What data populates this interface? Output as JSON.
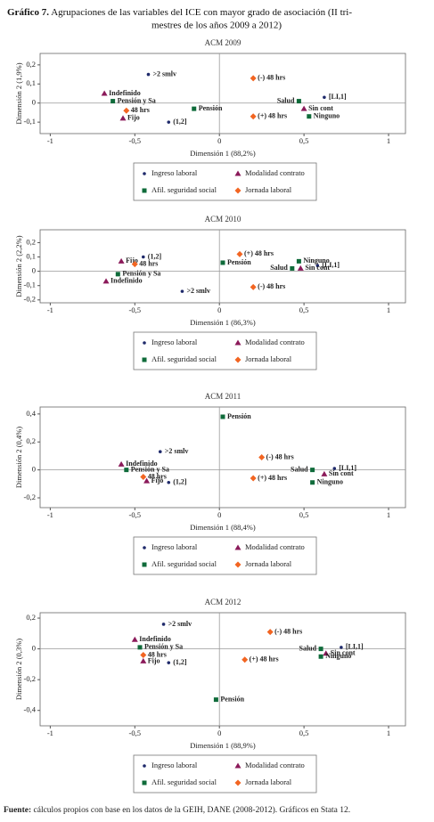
{
  "title_label": "Gráfico 7.",
  "title": "Agrupaciones de las variables del ICE con mayor grado de asociación (II tri-",
  "title_line2": "mestres de los años 2009 a 2012)",
  "source_label": "Fuente:",
  "source": "cálculos propios con base en los datos de la GEIH, DANE (2008-2012). Gráficos en Stata 12.",
  "chart_data": [
    {
      "type": "scatter",
      "title": "ACM 2009",
      "xlabel": "Dimensión 1 (88,2%)",
      "ylabel": "Dimensión 2 (1,9%)",
      "xlim": [
        -1.06,
        1.1
      ],
      "ylim": [
        -0.16,
        0.26
      ],
      "xticks": [
        -1,
        {
          "value": -0.5,
          "label": "-0,5"
        },
        0,
        {
          "value": 0.5,
          "label": "0,5"
        },
        1
      ],
      "yticks": [
        {
          "value": 0.2,
          "label": "0,2"
        },
        {
          "value": 0.1,
          "label": "0,1"
        },
        0,
        {
          "value": -0.1,
          "label": "-0,1"
        }
      ],
      "series": [
        {
          "name": "Ingreso laboral",
          "color": "#1f2a6b",
          "marker": "circle",
          "x": [
            -0.42,
            -0.3,
            0.62
          ],
          "y": [
            0.15,
            -0.1,
            0.03
          ],
          "labels": [
            ">2 smlv",
            "(1,2]",
            "[LI,1]"
          ]
        },
        {
          "name": "Modalidad contrato",
          "color": "#8b1a5a",
          "marker": "triangle",
          "x": [
            -0.68,
            -0.57,
            0.5
          ],
          "y": [
            0.05,
            -0.08,
            -0.03
          ],
          "labels": [
            "Indefinido",
            "Fijo",
            "Sin cont"
          ]
        },
        {
          "name": "Afil. seguridad social",
          "color": "#0f6b3a",
          "marker": "square",
          "x": [
            -0.63,
            -0.15,
            0.47,
            0.53
          ],
          "y": [
            0.01,
            -0.03,
            0.01,
            -0.07
          ],
          "labels": [
            "Pensión y Sa",
            "Pensión",
            "Salud",
            "Ninguno"
          ]
        },
        {
          "name": "Jornada laboral",
          "color": "#f26522",
          "marker": "diamond",
          "x": [
            -0.55,
            0.2,
            0.2
          ],
          "y": [
            -0.04,
            0.13,
            -0.07
          ],
          "labels": [
            "48 hrs",
            "(-) 48 hrs",
            "(+) 48 hrs"
          ]
        }
      ]
    },
    {
      "type": "scatter",
      "title": "ACM 2010",
      "xlabel": "Dimensión 1 (86,3%)",
      "ylabel": "Dimensión 2 (2,2%)",
      "xlim": [
        -1.06,
        1.1
      ],
      "ylim": [
        -0.22,
        0.29
      ],
      "xticks": [
        -1,
        {
          "value": -0.5,
          "label": "-0,5"
        },
        0,
        {
          "value": 0.5,
          "label": "0,5"
        },
        1
      ],
      "yticks": [
        {
          "value": 0.2,
          "label": "0,2"
        },
        {
          "value": 0.1,
          "label": "0,1"
        },
        0,
        {
          "value": -0.1,
          "label": "-0,1"
        },
        {
          "value": -0.2,
          "label": "-0,2"
        }
      ],
      "series": [
        {
          "name": "Ingreso laboral",
          "color": "#1f2a6b",
          "marker": "circle",
          "x": [
            -0.45,
            -0.22,
            0.58
          ],
          "y": [
            0.1,
            -0.14,
            0.04
          ],
          "labels": [
            "(1,2]",
            ">2 smlv",
            "[LI,1]"
          ]
        },
        {
          "name": "Modalidad contrato",
          "color": "#8b1a5a",
          "marker": "triangle",
          "x": [
            -0.58,
            -0.67,
            0.48
          ],
          "y": [
            0.07,
            -0.07,
            0.02
          ],
          "labels": [
            "Fijo",
            "Indefinido",
            "Sin cont"
          ]
        },
        {
          "name": "Afil. seguridad social",
          "color": "#0f6b3a",
          "marker": "square",
          "x": [
            -0.6,
            0.02,
            0.43,
            0.47
          ],
          "y": [
            -0.02,
            0.06,
            0.02,
            0.07
          ],
          "labels": [
            "Pensión y Sa",
            "Pensión",
            "Salud",
            "Ninguno"
          ]
        },
        {
          "name": "Jornada laboral",
          "color": "#f26522",
          "marker": "diamond",
          "x": [
            -0.5,
            0.12,
            0.2
          ],
          "y": [
            0.05,
            0.12,
            -0.11
          ],
          "labels": [
            "48 hrs",
            "(+) 48 hrs",
            "(-) 48 hrs"
          ]
        }
      ]
    },
    {
      "type": "scatter",
      "title": "ACM 2011",
      "xlabel": "Dimensión 1 (88,4%)",
      "ylabel": "Dimensión 2 (0,4%)",
      "xlim": [
        -1.06,
        1.1
      ],
      "ylim": [
        -0.27,
        0.45
      ],
      "xticks": [
        -1,
        {
          "value": -0.5,
          "label": "-0,5"
        },
        0,
        {
          "value": 0.5,
          "label": "0,5"
        },
        1
      ],
      "yticks": [
        {
          "value": 0.4,
          "label": "0,4"
        },
        {
          "value": 0.2,
          "label": "0,2"
        },
        0,
        {
          "value": -0.2,
          "label": "-0,2"
        }
      ],
      "series": [
        {
          "name": "Ingreso laboral",
          "color": "#1f2a6b",
          "marker": "circle",
          "x": [
            -0.35,
            -0.3,
            0.68
          ],
          "y": [
            0.13,
            -0.09,
            0.01
          ],
          "labels": [
            ">2 smlv",
            "(1,2]",
            "[LI,1]"
          ]
        },
        {
          "name": "Modalidad contrato",
          "color": "#8b1a5a",
          "marker": "triangle",
          "x": [
            -0.58,
            -0.43,
            0.62
          ],
          "y": [
            0.04,
            -0.08,
            -0.03
          ],
          "labels": [
            "Indefinido",
            "Fijo",
            "Sin cont"
          ]
        },
        {
          "name": "Afil. seguridad social",
          "color": "#0f6b3a",
          "marker": "square",
          "x": [
            0.02,
            -0.55,
            0.55,
            0.55
          ],
          "y": [
            0.38,
            0.0,
            0.0,
            -0.09
          ],
          "labels": [
            "Pensión",
            "Pensión y Sa",
            "Salud",
            "Ninguno"
          ]
        },
        {
          "name": "Jornada laboral",
          "color": "#f26522",
          "marker": "diamond",
          "x": [
            -0.45,
            0.25,
            0.2
          ],
          "y": [
            -0.05,
            0.09,
            -0.06
          ],
          "labels": [
            "48 hrs",
            "(-) 48 hrs",
            "(+) 48 hrs"
          ]
        }
      ]
    },
    {
      "type": "scatter",
      "title": "ACM 2012",
      "xlabel": "Dimensión 1 (88,9%)",
      "ylabel": "Dimensión 2 (0,3%)",
      "xlim": [
        -1.06,
        1.1
      ],
      "ylim": [
        -0.5,
        0.235
      ],
      "xticks": [
        -1,
        {
          "value": -0.5,
          "label": "-0,5"
        },
        0,
        {
          "value": 0.5,
          "label": "0,5"
        },
        1
      ],
      "yticks": [
        {
          "value": 0.2,
          "label": "0,2"
        },
        0,
        {
          "value": -0.2,
          "label": "-0,2"
        },
        {
          "value": -0.4,
          "label": "-0,4"
        }
      ],
      "series": [
        {
          "name": "Ingreso laboral",
          "color": "#1f2a6b",
          "marker": "circle",
          "x": [
            -0.33,
            -0.3,
            0.72
          ],
          "y": [
            0.16,
            -0.09,
            0.01
          ],
          "labels": [
            ">2 smlv",
            "(1,2]",
            "[LI,1]"
          ]
        },
        {
          "name": "Modalidad contrato",
          "color": "#8b1a5a",
          "marker": "triangle",
          "x": [
            -0.5,
            -0.45,
            0.63
          ],
          "y": [
            0.06,
            -0.08,
            -0.03
          ],
          "labels": [
            "Indefinido",
            "Fijo",
            "Sin cont"
          ]
        },
        {
          "name": "Afil. seguridad social",
          "color": "#0f6b3a",
          "marker": "square",
          "x": [
            -0.47,
            -0.02,
            0.6,
            0.6
          ],
          "y": [
            0.01,
            -0.33,
            0.0,
            -0.05
          ],
          "labels": [
            "Pensión y Sa",
            "Pensión",
            "Salud",
            "Ninguno"
          ]
        },
        {
          "name": "Jornada laboral",
          "color": "#f26522",
          "marker": "diamond",
          "x": [
            -0.45,
            0.3,
            0.15
          ],
          "y": [
            -0.04,
            0.11,
            -0.07
          ],
          "labels": [
            "48 hrs",
            "(-) 48 hrs",
            "(+) 48 hrs"
          ]
        }
      ]
    }
  ]
}
